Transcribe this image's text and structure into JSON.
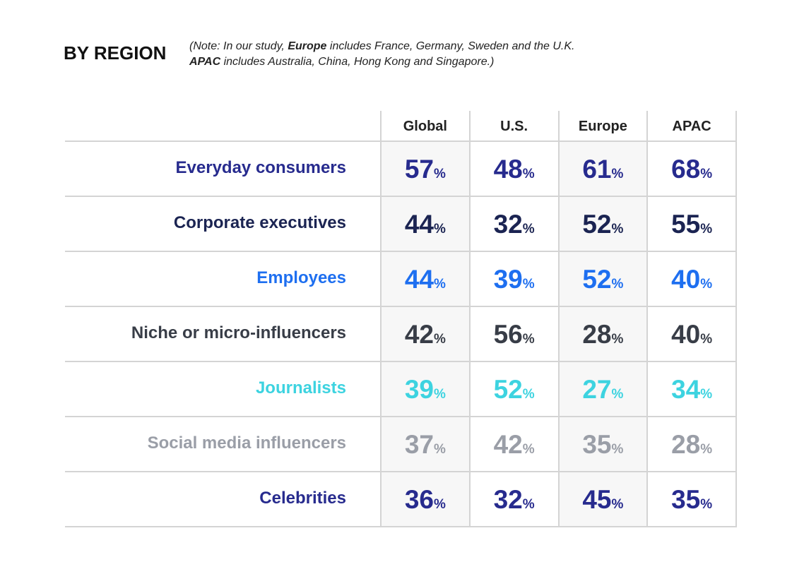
{
  "header": {
    "title": "BY REGION",
    "note": [
      [
        "(Note: In our study, ",
        "Europe",
        " includes France, Germany, Sweden and the U.K."
      ],
      [
        "",
        "APAC",
        " includes Australia, China, Hong Kong and Singapore.)"
      ]
    ]
  },
  "table": {
    "columns": [
      "Global",
      "U.S.",
      "Europe",
      "APAC"
    ],
    "unit": "%",
    "rows": [
      {
        "label": "Everyday consumers",
        "color": "#272b8e",
        "values": [
          "57",
          "48",
          "61",
          "68"
        ]
      },
      {
        "label": "Corporate executives",
        "color": "#1b2452",
        "values": [
          "44",
          "32",
          "52",
          "55"
        ]
      },
      {
        "label": "Employees",
        "color": "#1e6ff0",
        "values": [
          "44",
          "39",
          "52",
          "40"
        ]
      },
      {
        "label": "Niche or micro-influencers",
        "color": "#383d47",
        "values": [
          "42",
          "56",
          "28",
          "40"
        ]
      },
      {
        "label": "Journalists",
        "color": "#3dd3e0",
        "values": [
          "39",
          "52",
          "27",
          "34"
        ]
      },
      {
        "label": "Social media influencers",
        "color": "#9a9ea7",
        "values": [
          "37",
          "42",
          "35",
          "28"
        ]
      },
      {
        "label": "Celebrities",
        "color": "#272b8e",
        "values": [
          "36",
          "32",
          "45",
          "35"
        ]
      }
    ]
  }
}
